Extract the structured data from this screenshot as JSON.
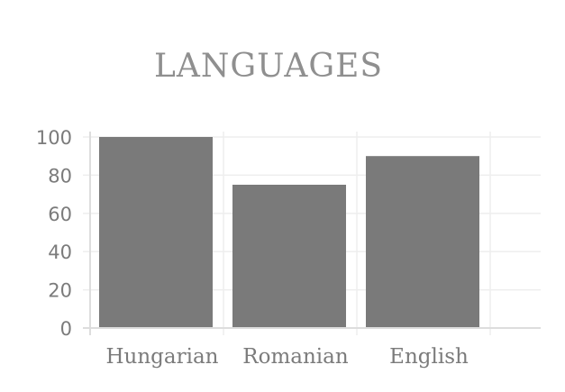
{
  "chart_data": {
    "type": "bar",
    "title": "LANGUAGES",
    "categories": [
      "Hungarian",
      "Romanian",
      "English"
    ],
    "values": [
      100,
      75,
      90
    ],
    "ylim": [
      0,
      100
    ],
    "yticks": [
      0,
      20,
      40,
      60,
      80,
      100
    ],
    "xlabel": "",
    "ylabel": "",
    "grid": true,
    "legend": "none",
    "colors": {
      "bar": "#7a7a7a",
      "grid": "#eeeeee",
      "axis": "#dddddd",
      "text": "#7b7b7b",
      "title": "#8f8f8f"
    }
  }
}
